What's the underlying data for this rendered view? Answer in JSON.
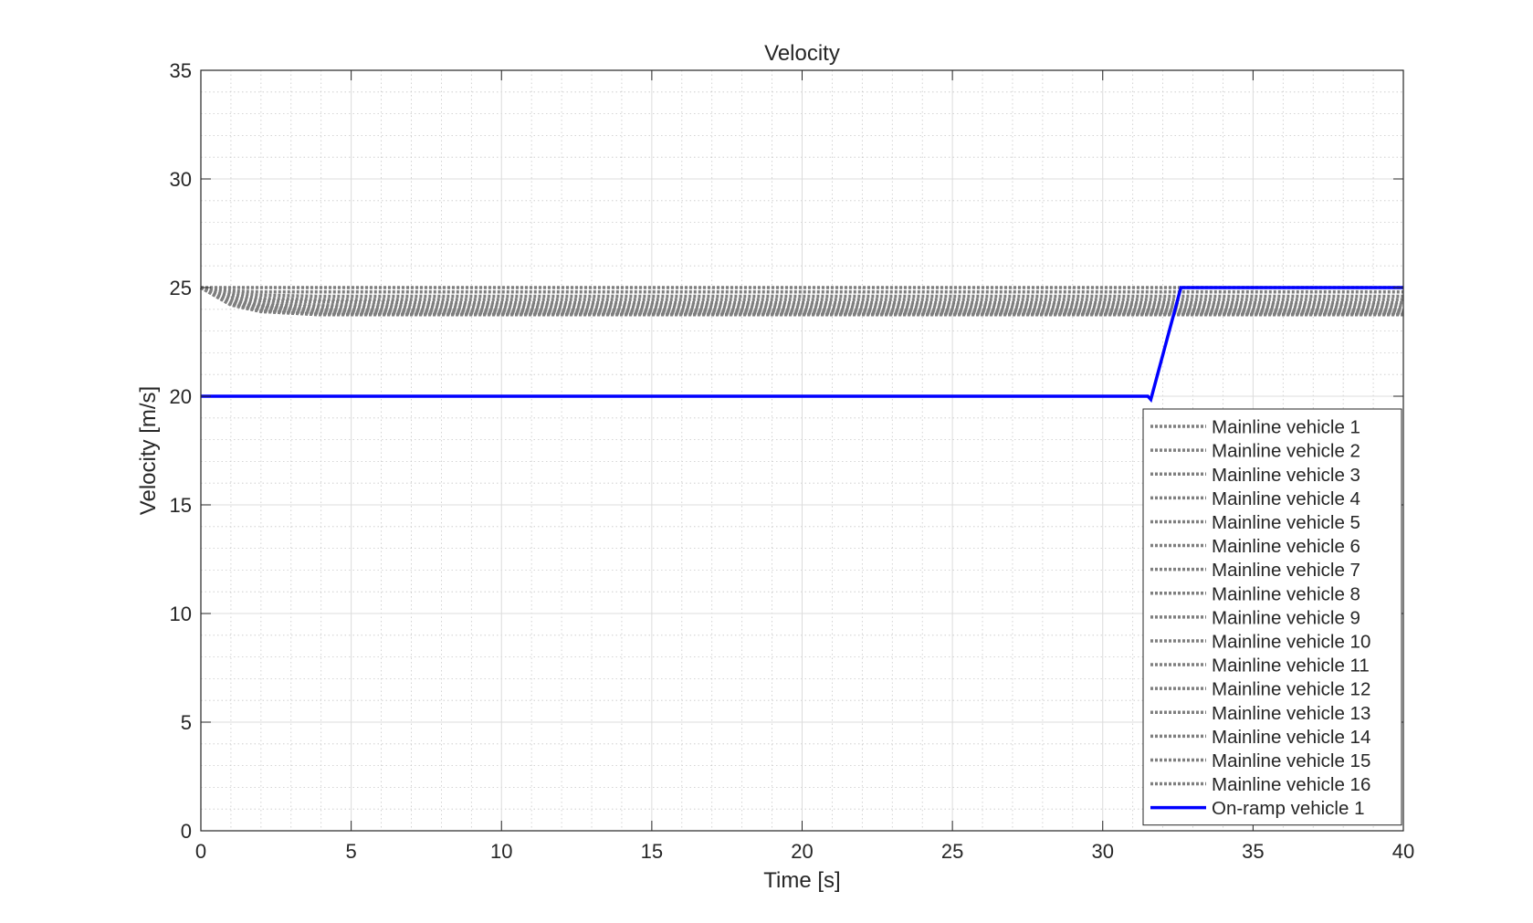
{
  "chart_data": {
    "type": "line",
    "title": "Velocity",
    "xlabel": "Time [s]",
    "ylabel": "Velocity [m/s]",
    "xlim": [
      0,
      40
    ],
    "ylim": [
      0,
      35
    ],
    "xticks": [
      0,
      5,
      10,
      15,
      20,
      25,
      30,
      35,
      40
    ],
    "yticks": [
      0,
      5,
      10,
      15,
      20,
      25,
      30,
      35
    ],
    "xtick_labels": [
      "0",
      "5",
      "10",
      "15",
      "20",
      "25",
      "30",
      "35",
      "40"
    ],
    "ytick_labels": [
      "0",
      "5",
      "10",
      "15",
      "20",
      "25",
      "30",
      "35"
    ],
    "grid": true,
    "minor_grid": true,
    "legend_position": "bottom-right",
    "series": [
      {
        "name": "Mainline vehicle 1",
        "style": "dotted",
        "color": "#7f7f7f",
        "x": [
          0,
          40
        ],
        "y": [
          25.0,
          25.0
        ]
      },
      {
        "name": "Mainline vehicle 2",
        "style": "dotted",
        "color": "#7f7f7f",
        "x": [
          0,
          1,
          2,
          4,
          8,
          20,
          31.5,
          32.5,
          40
        ],
        "y": [
          25.0,
          24.85,
          24.8,
          24.8,
          24.8,
          24.8,
          24.8,
          24.8,
          24.8
        ]
      },
      {
        "name": "Mainline vehicle 3",
        "style": "dotted",
        "color": "#7f7f7f",
        "x": [
          0,
          1,
          2,
          4,
          8,
          20,
          31.5,
          32.5,
          40
        ],
        "y": [
          25.0,
          24.75,
          24.65,
          24.6,
          24.6,
          24.6,
          24.6,
          24.6,
          24.6
        ]
      },
      {
        "name": "Mainline vehicle 4",
        "style": "dotted",
        "color": "#7f7f7f",
        "x": [
          0,
          1,
          2,
          4,
          8,
          20,
          31.5,
          32.5,
          40
        ],
        "y": [
          25.0,
          24.65,
          24.5,
          24.45,
          24.45,
          24.45,
          24.45,
          24.45,
          24.45
        ]
      },
      {
        "name": "Mainline vehicle 5",
        "style": "dotted",
        "color": "#7f7f7f",
        "x": [
          0,
          1,
          2,
          4,
          8,
          20,
          31.5,
          32.5,
          40
        ],
        "y": [
          25.0,
          24.55,
          24.4,
          24.35,
          24.3,
          24.3,
          24.3,
          24.3,
          24.3
        ]
      },
      {
        "name": "Mainline vehicle 6",
        "style": "dotted",
        "color": "#7f7f7f",
        "x": [
          0,
          1,
          2,
          4,
          8,
          20,
          31.5,
          32.5,
          40
        ],
        "y": [
          25.0,
          24.5,
          24.3,
          24.2,
          24.2,
          24.2,
          24.2,
          24.2,
          24.2
        ]
      },
      {
        "name": "Mainline vehicle 7",
        "style": "dotted",
        "color": "#7f7f7f",
        "x": [
          0,
          1,
          2,
          4,
          8,
          20,
          31.5,
          32.5,
          40
        ],
        "y": [
          25.0,
          24.45,
          24.2,
          24.1,
          24.1,
          24.1,
          24.1,
          24.1,
          24.1
        ]
      },
      {
        "name": "Mainline vehicle 8",
        "style": "dotted",
        "color": "#7f7f7f",
        "x": [
          0,
          1,
          2,
          4,
          8,
          20,
          31.5,
          32.5,
          40
        ],
        "y": [
          25.0,
          24.4,
          24.15,
          24.0,
          24.0,
          24.0,
          24.0,
          24.0,
          24.0
        ]
      },
      {
        "name": "Mainline vehicle 9",
        "style": "dotted",
        "color": "#7f7f7f",
        "x": [
          0,
          1,
          2,
          4,
          8,
          20,
          31.5,
          32.5,
          40
        ],
        "y": [
          25.0,
          24.35,
          24.1,
          23.95,
          23.95,
          23.95,
          23.95,
          23.95,
          23.95
        ]
      },
      {
        "name": "Mainline vehicle 10",
        "style": "dotted",
        "color": "#7f7f7f",
        "x": [
          0,
          1,
          2,
          4,
          8,
          20,
          31.5,
          32.5,
          40
        ],
        "y": [
          25.0,
          24.3,
          24.05,
          23.9,
          23.9,
          23.9,
          23.9,
          23.9,
          23.9
        ]
      },
      {
        "name": "Mainline vehicle 11",
        "style": "dotted",
        "color": "#7f7f7f",
        "x": [
          0,
          1,
          2,
          4,
          8,
          20,
          31.5,
          32.5,
          40
        ],
        "y": [
          25.0,
          24.3,
          24.0,
          23.85,
          23.85,
          23.85,
          23.85,
          23.85,
          23.85
        ]
      },
      {
        "name": "Mainline vehicle 12",
        "style": "dotted",
        "color": "#7f7f7f",
        "x": [
          0,
          1,
          2,
          4,
          8,
          20,
          31.5,
          32.5,
          40
        ],
        "y": [
          25.0,
          24.25,
          23.95,
          23.8,
          23.8,
          23.8,
          23.8,
          23.8,
          23.8
        ]
      },
      {
        "name": "Mainline vehicle 13",
        "style": "dotted",
        "color": "#7f7f7f",
        "x": [
          0,
          1,
          2,
          4,
          8,
          20,
          31.5,
          32.5,
          40
        ],
        "y": [
          25.0,
          24.25,
          23.95,
          23.8,
          23.8,
          23.8,
          23.8,
          23.8,
          23.8
        ]
      },
      {
        "name": "Mainline vehicle 14",
        "style": "dotted",
        "color": "#7f7f7f",
        "x": [
          0,
          1,
          2,
          4,
          8,
          20,
          31.5,
          32.5,
          40
        ],
        "y": [
          25.0,
          24.2,
          23.9,
          23.75,
          23.75,
          23.75,
          23.75,
          23.75,
          23.75
        ]
      },
      {
        "name": "Mainline vehicle 15",
        "style": "dotted",
        "color": "#7f7f7f",
        "x": [
          0,
          1,
          2,
          4,
          8,
          20,
          31.5,
          32.5,
          40
        ],
        "y": [
          25.0,
          24.2,
          23.9,
          23.75,
          23.75,
          23.75,
          23.75,
          23.75,
          23.75
        ]
      },
      {
        "name": "Mainline vehicle 16",
        "style": "dotted",
        "color": "#7f7f7f",
        "x": [
          0,
          1,
          2,
          4,
          8,
          20,
          31.5,
          32.5,
          40
        ],
        "y": [
          25.0,
          24.2,
          23.9,
          23.75,
          23.75,
          23.75,
          23.75,
          23.75,
          23.75
        ]
      },
      {
        "name": "On-ramp vehicle 1",
        "style": "solid",
        "color": "#0000ff",
        "x": [
          0,
          31.5,
          31.6,
          32.6,
          40
        ],
        "y": [
          20.0,
          20.0,
          19.85,
          25.0,
          25.0
        ]
      }
    ]
  }
}
